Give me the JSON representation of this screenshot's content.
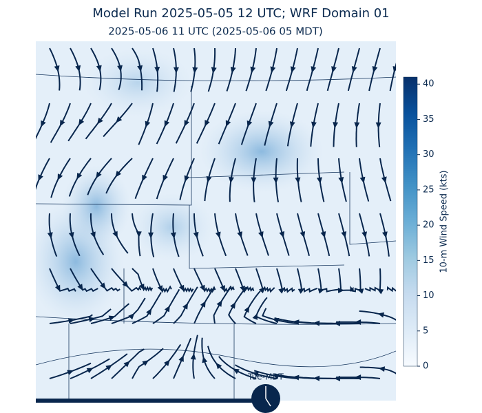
{
  "header": {
    "title": "Model Run 2025-05-05 12 UTC; WRF Domain 01",
    "subtitle": "2025-05-06 11 UTC  (2025-05-06 05 MDT)"
  },
  "colorbar": {
    "label": "10-m Wind Speed (kts)",
    "lim": [
      0,
      41
    ],
    "ticks": [
      0,
      5,
      10,
      15,
      20,
      25,
      30,
      35,
      40
    ],
    "colormap": [
      "#f7fbff",
      "#deebf7",
      "#c6dbef",
      "#9ecae1",
      "#6baed6",
      "#4292c6",
      "#2171b5",
      "#08519c",
      "#08306b"
    ]
  },
  "timeline": {
    "clock_label": "Tue-MDT"
  }
}
